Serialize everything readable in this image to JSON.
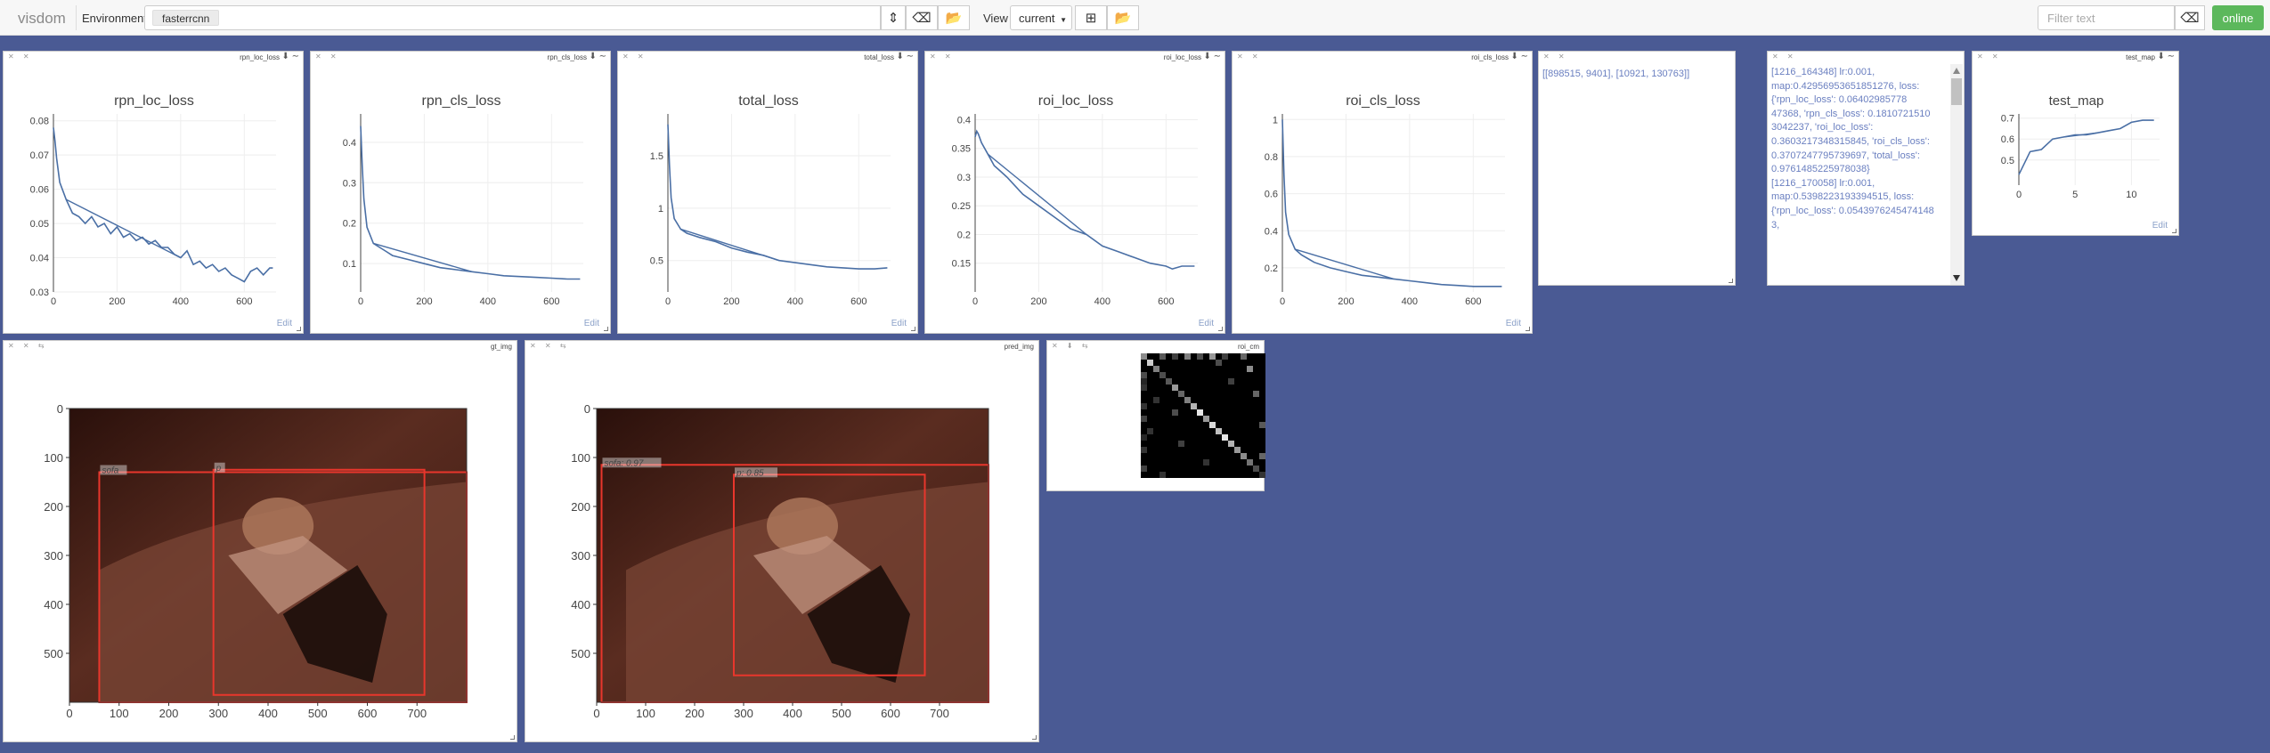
{
  "app": {
    "brand": "visdom",
    "env_label": "Environment",
    "env_chip": "fasterrcnn",
    "view_label": "View",
    "view_value": "current",
    "filter_placeholder": "Filter text",
    "status": "online"
  },
  "colors": {
    "background": "#4a5a94",
    "line": "#4a6fa5",
    "online": "#5cb85c",
    "box": "#e8362c"
  },
  "panes": {
    "rpn_loc": {
      "window_name": "rpn_loc_loss",
      "edit": "Edit"
    },
    "rpn_cls": {
      "window_name": "rpn_cls_loss",
      "edit": "Edit"
    },
    "total": {
      "window_name": "total_loss",
      "edit": "Edit"
    },
    "roi_loc": {
      "window_name": "roi_loc_loss",
      "edit": "Edit"
    },
    "roi_cls": {
      "window_name": "roi_cls_loss",
      "edit": "Edit"
    },
    "test_map": {
      "window_name": "test_map",
      "edit": "Edit"
    },
    "gt_img": {
      "window_name": "gt_img"
    },
    "pred_img": {
      "window_name": "pred_img"
    },
    "roi_cm": {
      "window_name": "roi_cm"
    }
  },
  "text_pane": {
    "content": "[[898515, 9401], [10921, 130763]]"
  },
  "log_pane": {
    "content": "[1216_164348] lr:0.001, map:0.42956953651851276, loss:{'rpn_loc_loss': 0.06402985778 47368, 'rpn_cls_loss': 0.1810721510 3042237, 'roi_loc_loss': 0.3603217348315845, 'roi_cls_loss': 0.3707247795739697, 'total_loss': 0.9761485225978038} [1216_170058] lr:0.001, map:0.5398223193394515, loss:{'rpn_loc_loss': 0.0543976245474148 3,"
  },
  "chart_data": [
    {
      "type": "line",
      "title": "rpn_loc_loss",
      "xlim": [
        0,
        700
      ],
      "ylim": [
        0.03,
        0.082
      ],
      "xticks": [
        0,
        200,
        400,
        600
      ],
      "yticks": [
        0.03,
        0.04,
        0.05,
        0.06,
        0.07,
        0.08
      ],
      "x": [
        0,
        5,
        10,
        20,
        40,
        60,
        80,
        100,
        120,
        140,
        160,
        180,
        200,
        220,
        240,
        260,
        280,
        300,
        320,
        340,
        360,
        380,
        400,
        420,
        440,
        460,
        480,
        500,
        520,
        540,
        560,
        580,
        600,
        620,
        640,
        660,
        680,
        690
      ],
      "y": [
        0.078,
        0.074,
        0.069,
        0.062,
        0.057,
        0.053,
        0.052,
        0.05,
        0.052,
        0.049,
        0.05,
        0.047,
        0.049,
        0.046,
        0.047,
        0.045,
        0.046,
        0.044,
        0.045,
        0.043,
        0.043,
        0.041,
        0.04,
        0.042,
        0.038,
        0.039,
        0.037,
        0.038,
        0.036,
        0.037,
        0.035,
        0.034,
        0.033,
        0.036,
        0.037,
        0.035,
        0.037,
        0.037
      ]
    },
    {
      "type": "line",
      "title": "rpn_cls_loss",
      "xlim": [
        0,
        700
      ],
      "ylim": [
        0.03,
        0.47
      ],
      "xticks": [
        0,
        200,
        400,
        600
      ],
      "yticks": [
        0.1,
        0.2,
        0.3,
        0.4
      ],
      "x": [
        0,
        5,
        10,
        20,
        40,
        60,
        80,
        100,
        150,
        200,
        250,
        300,
        350,
        400,
        450,
        500,
        550,
        600,
        650,
        690
      ],
      "y": [
        0.44,
        0.34,
        0.26,
        0.19,
        0.15,
        0.14,
        0.13,
        0.12,
        0.11,
        0.1,
        0.09,
        0.085,
        0.08,
        0.075,
        0.07,
        0.068,
        0.066,
        0.064,
        0.062,
        0.062
      ]
    },
    {
      "type": "line",
      "title": "total_loss",
      "xlim": [
        0,
        700
      ],
      "ylim": [
        0.2,
        1.9
      ],
      "xticks": [
        0,
        200,
        400,
        600
      ],
      "yticks": [
        0.5,
        1,
        1.5
      ],
      "x": [
        0,
        5,
        10,
        20,
        40,
        60,
        80,
        100,
        150,
        200,
        250,
        300,
        350,
        400,
        450,
        500,
        550,
        600,
        650,
        690
      ],
      "y": [
        1.8,
        1.4,
        1.1,
        0.9,
        0.8,
        0.76,
        0.74,
        0.72,
        0.68,
        0.62,
        0.58,
        0.55,
        0.5,
        0.48,
        0.46,
        0.44,
        0.43,
        0.42,
        0.42,
        0.43
      ]
    },
    {
      "type": "line",
      "title": "roi_loc_loss",
      "xlim": [
        0,
        700
      ],
      "ylim": [
        0.1,
        0.41
      ],
      "xticks": [
        0,
        200,
        400,
        600
      ],
      "yticks": [
        0.15,
        0.2,
        0.25,
        0.3,
        0.35,
        0.4
      ],
      "x": [
        0,
        5,
        10,
        20,
        40,
        60,
        80,
        100,
        150,
        200,
        250,
        300,
        350,
        400,
        450,
        500,
        550,
        600,
        620,
        650,
        690
      ],
      "y": [
        0.37,
        0.38,
        0.375,
        0.36,
        0.34,
        0.32,
        0.31,
        0.3,
        0.27,
        0.25,
        0.23,
        0.21,
        0.2,
        0.18,
        0.17,
        0.16,
        0.15,
        0.145,
        0.14,
        0.145,
        0.145
      ]
    },
    {
      "type": "line",
      "title": "roi_cls_loss",
      "xlim": [
        0,
        700
      ],
      "ylim": [
        0.07,
        1.03
      ],
      "xticks": [
        0,
        200,
        400,
        600
      ],
      "yticks": [
        0.2,
        0.4,
        0.6,
        0.8,
        1
      ],
      "x": [
        0,
        5,
        10,
        20,
        40,
        60,
        80,
        100,
        150,
        200,
        250,
        300,
        350,
        400,
        450,
        500,
        550,
        600,
        650,
        690
      ],
      "y": [
        1.0,
        0.7,
        0.5,
        0.38,
        0.3,
        0.27,
        0.25,
        0.23,
        0.2,
        0.18,
        0.16,
        0.15,
        0.14,
        0.13,
        0.12,
        0.11,
        0.105,
        0.1,
        0.1,
        0.1
      ]
    },
    {
      "type": "line",
      "title": "test_map",
      "xlim": [
        0,
        12.5
      ],
      "ylim": [
        0.38,
        0.72
      ],
      "xticks": [
        0,
        5,
        10
      ],
      "yticks": [
        0.5,
        0.6,
        0.7
      ],
      "x": [
        0,
        1,
        2,
        3,
        4,
        5,
        6,
        7,
        8,
        9,
        10,
        11,
        12
      ],
      "y": [
        0.43,
        0.54,
        0.55,
        0.6,
        0.61,
        0.62,
        0.62,
        0.63,
        0.64,
        0.65,
        0.68,
        0.69,
        0.69
      ]
    },
    {
      "type": "heatmap",
      "title": "roi_cm",
      "rows": 20,
      "cols": 20,
      "diag_intensity": [
        0.55,
        0.8,
        0.5,
        0.3,
        0.35,
        0.6,
        0.4,
        0.5,
        0.7,
        0.9,
        0.6,
        0.85,
        0.75,
        0.9,
        0.7,
        0.6,
        0.55,
        0.45,
        0.3,
        0.2
      ],
      "offdiag": [
        [
          0,
          3,
          0.35
        ],
        [
          0,
          5,
          0.25
        ],
        [
          0,
          7,
          0.5
        ],
        [
          0,
          9,
          0.3
        ],
        [
          0,
          11,
          0.6
        ],
        [
          0,
          13,
          0.25
        ],
        [
          0,
          16,
          0.4
        ],
        [
          1,
          12,
          0.3
        ],
        [
          2,
          17,
          0.55
        ],
        [
          3,
          0,
          0.3
        ],
        [
          4,
          14,
          0.25
        ],
        [
          5,
          0,
          0.2
        ],
        [
          6,
          18,
          0.4
        ],
        [
          7,
          2,
          0.2
        ],
        [
          9,
          5,
          0.3
        ],
        [
          11,
          19,
          0.35
        ],
        [
          12,
          1,
          0.2
        ],
        [
          14,
          6,
          0.25
        ],
        [
          16,
          19,
          0.4
        ],
        [
          17,
          10,
          0.2
        ],
        [
          18,
          0,
          0.25
        ],
        [
          19,
          3,
          0.2
        ],
        [
          4,
          0,
          0.15
        ],
        [
          8,
          0,
          0.2
        ],
        [
          10,
          0,
          0.25
        ],
        [
          13,
          0,
          0.15
        ],
        [
          15,
          0,
          0.2
        ]
      ]
    }
  ],
  "images": {
    "gt": {
      "xlim": [
        0,
        800
      ],
      "ylim": [
        0,
        600
      ],
      "xticks": [
        0,
        100,
        200,
        300,
        400,
        500,
        600,
        700
      ],
      "yticks": [
        0,
        100,
        200,
        300,
        400,
        500
      ],
      "boxes": [
        {
          "label": "sofa",
          "x0": 60,
          "y0": 130,
          "x1": 800,
          "y1": 600
        },
        {
          "label": "p",
          "x0": 290,
          "y0": 125,
          "x1": 715,
          "y1": 585
        }
      ]
    },
    "pred": {
      "xlim": [
        0,
        800
      ],
      "ylim": [
        0,
        600
      ],
      "xticks": [
        0,
        100,
        200,
        300,
        400,
        500,
        600,
        700
      ],
      "yticks": [
        0,
        100,
        200,
        300,
        400,
        500
      ],
      "boxes": [
        {
          "label": "sofa: 0.97",
          "x0": 10,
          "y0": 115,
          "x1": 800,
          "y1": 600
        },
        {
          "label": "p: 0.85",
          "x0": 280,
          "y0": 135,
          "x1": 670,
          "y1": 545
        }
      ]
    }
  }
}
